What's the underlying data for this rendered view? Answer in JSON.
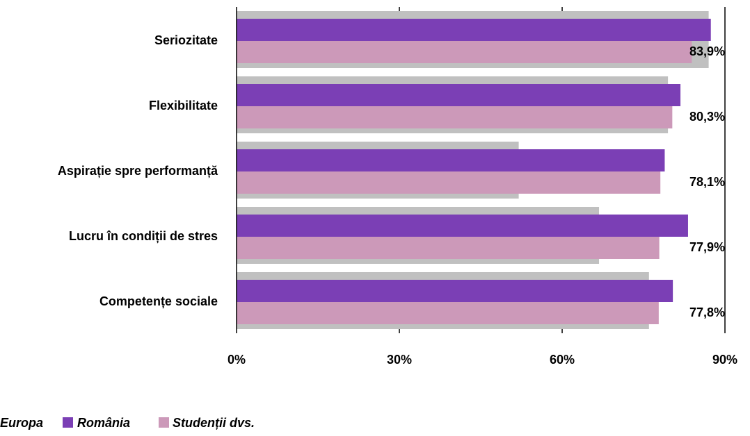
{
  "chart_data": {
    "type": "bar",
    "orientation": "horizontal",
    "categories": [
      "Seriozitate",
      "Flexibilitate",
      "Aspirație spre performanță",
      "Lucru în condiții de stres",
      "Competențe sociale"
    ],
    "series": [
      {
        "name": "Europa",
        "color": "#c0c0c0",
        "values": [
          87.0,
          79.5,
          52.0,
          66.8,
          76.0
        ]
      },
      {
        "name": "România",
        "color": "#7b3fb5",
        "values": [
          87.4,
          81.8,
          78.9,
          83.2,
          80.4
        ]
      },
      {
        "name": "Studenții dvs.",
        "color": "#cc99b9",
        "values": [
          83.9,
          80.3,
          78.1,
          77.9,
          77.8
        ]
      }
    ],
    "value_labels": [
      "83,9%",
      "80,3%",
      "78,1%",
      "77,9%",
      "77,8%"
    ],
    "xlim": [
      0,
      90
    ],
    "ticks": [
      0,
      30,
      60,
      90
    ],
    "tick_labels": [
      "0%",
      "30%",
      "60%",
      "90%"
    ],
    "grid": false,
    "legend": {
      "position": "bottom-left",
      "entries": [
        "Europa",
        "România",
        "Studenții dvs."
      ]
    }
  }
}
